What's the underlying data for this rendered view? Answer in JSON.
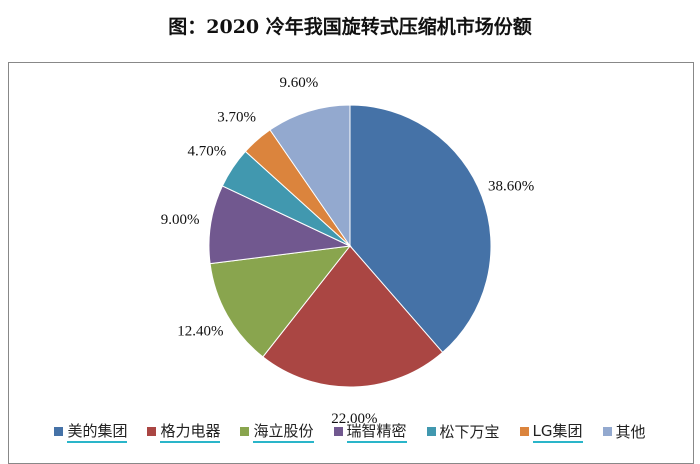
{
  "chart_data": {
    "type": "pie",
    "title": "图：2020 冷年我国旋转式压缩机市场份额",
    "legend_position": "bottom",
    "slices": [
      {
        "label": "美的集团",
        "value": 38.6,
        "value_label": "38.60%",
        "color": "#4572A7",
        "underlined": true
      },
      {
        "label": "格力电器",
        "value": 22.0,
        "value_label": "22.00%",
        "color": "#AA4643",
        "underlined": true
      },
      {
        "label": "海立股份",
        "value": 12.4,
        "value_label": "12.40%",
        "color": "#89A54E",
        "underlined": true
      },
      {
        "label": "瑞智精密",
        "value": 9.0,
        "value_label": "9.00%",
        "color": "#71588F",
        "underlined": true
      },
      {
        "label": "松下万宝",
        "value": 4.7,
        "value_label": "4.70%",
        "color": "#4198AF",
        "underlined": false
      },
      {
        "label": "LG集团",
        "value": 3.7,
        "value_label": "3.70%",
        "color": "#DB843D",
        "underlined": true
      },
      {
        "label": "其他",
        "value": 9.6,
        "value_label": "9.60%",
        "color": "#93A9CF",
        "underlined": false
      }
    ]
  }
}
